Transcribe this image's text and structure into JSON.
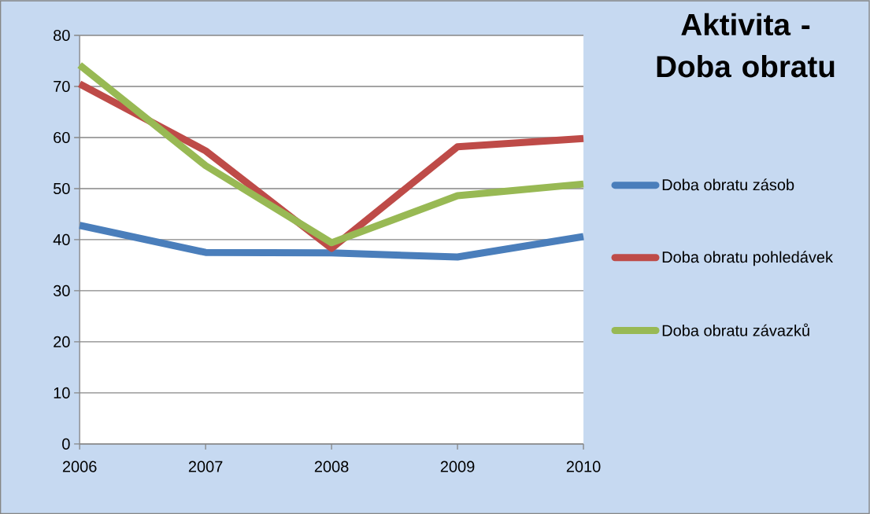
{
  "chart_data": {
    "type": "line",
    "title": "Aktivita - Doba obratu",
    "categories": [
      "2006",
      "2007",
      "2008",
      "2009",
      "2010"
    ],
    "series": [
      {
        "name": "Doba obratu zásob",
        "color": "#4a7ebb",
        "values": [
          42.8,
          37.5,
          37.4,
          36.6,
          40.6
        ]
      },
      {
        "name": "Doba obratu pohledávek",
        "color": "#be4b48",
        "values": [
          70.5,
          57.4,
          38.3,
          58.2,
          59.8
        ]
      },
      {
        "name": "Doba obratu závazků",
        "color": "#98b954",
        "values": [
          74.2,
          54.5,
          39.4,
          48.6,
          50.9
        ]
      }
    ],
    "ylim": [
      0,
      80
    ],
    "yticks": [
      0,
      10,
      20,
      30,
      40,
      50,
      60,
      70,
      80
    ],
    "grid": "y",
    "legend": "right",
    "marker": "none",
    "line_style": "solid"
  }
}
